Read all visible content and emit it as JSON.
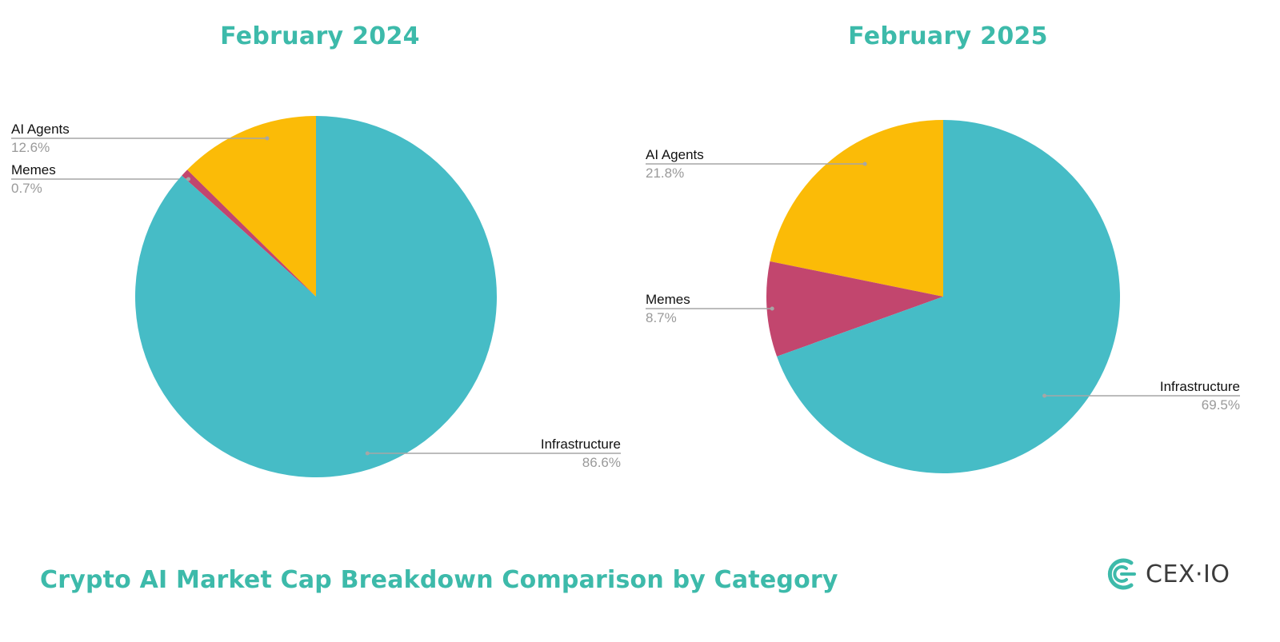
{
  "colors": {
    "accent": "#3dbaaa",
    "infrastructure": "#46bcc6",
    "ai_agents": "#fbbb07",
    "memes": "#c2466e",
    "leader": "#a6a6a6"
  },
  "chart_data": [
    {
      "type": "pie",
      "title": "February 2024",
      "slices": [
        {
          "label": "AI Agents",
          "value": 12.6,
          "display": "12.6%",
          "color": "#fbbb07"
        },
        {
          "label": "Memes",
          "value": 0.7,
          "display": "0.7%",
          "color": "#c2466e"
        },
        {
          "label": "Infrastructure",
          "value": 86.6,
          "display": "86.6%",
          "color": "#46bcc6"
        }
      ]
    },
    {
      "type": "pie",
      "title": "February 2025",
      "slices": [
        {
          "label": "AI Agents",
          "value": 21.8,
          "display": "21.8%",
          "color": "#fbbb07"
        },
        {
          "label": "Memes",
          "value": 8.7,
          "display": "8.7%",
          "color": "#c2466e"
        },
        {
          "label": "Infrastructure",
          "value": 69.5,
          "display": "69.5%",
          "color": "#46bcc6"
        }
      ]
    }
  ],
  "footer": {
    "title": "Crypto AI Market Cap Breakdown Comparison by Category"
  },
  "brand": {
    "logo_icon": "cex-io-logo-icon",
    "name": "CEX·IO"
  }
}
